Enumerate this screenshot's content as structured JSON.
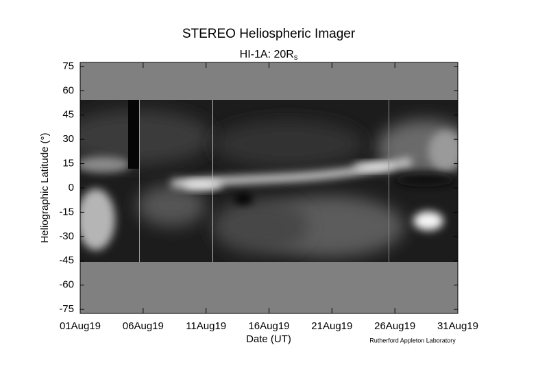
{
  "chart_data": {
    "type": "image",
    "title": "STEREO Heliospheric Imager",
    "subtitle": {
      "text": "HI-1A: 20R",
      "subscript": "s"
    },
    "y_label": "Heliographic Latitude (°)",
    "x_label": "Date (UT)",
    "credit": "Rutherford Appleton Laboratory",
    "xlim": [
      "2019-08-01",
      "2019-08-31"
    ],
    "xticks": [
      {
        "value": "2019-08-01",
        "label": "01Aug19"
      },
      {
        "value": "2019-08-06",
        "label": "06Aug19"
      },
      {
        "value": "2019-08-11",
        "label": "11Aug19"
      },
      {
        "value": "2019-08-16",
        "label": "16Aug19"
      },
      {
        "value": "2019-08-21",
        "label": "21Aug19"
      },
      {
        "value": "2019-08-26",
        "label": "26Aug19"
      },
      {
        "value": "2019-08-31",
        "label": "31Aug19"
      }
    ],
    "ylim": [
      -77.5,
      77.5
    ],
    "yticks": [
      75,
      60,
      45,
      30,
      15,
      0,
      -15,
      -30,
      -45,
      -60,
      -75
    ]
  }
}
